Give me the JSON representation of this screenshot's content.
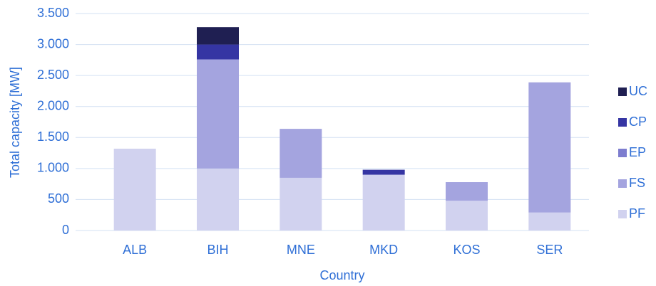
{
  "chart_data": {
    "type": "stacked_bar",
    "y_label": "Total capacity [MW]",
    "x_label": "Country",
    "categories": [
      "ALB",
      "BIH",
      "MNE",
      "MKD",
      "KOS",
      "SER"
    ],
    "series": [
      {
        "name": "PF",
        "color": "#d1d2ef",
        "values": [
          1320,
          1000,
          850,
          900,
          480,
          290
        ]
      },
      {
        "name": "FS",
        "color": "#a4a4df",
        "values": [
          0,
          1760,
          790,
          0,
          300,
          2100
        ]
      },
      {
        "name": "EP",
        "color": "#7d7dcf",
        "values": [
          0,
          0,
          0,
          0,
          0,
          0
        ]
      },
      {
        "name": "CP",
        "color": "#3535a3",
        "values": [
          0,
          240,
          0,
          80,
          0,
          0
        ]
      },
      {
        "name": "UC",
        "color": "#1f1f52",
        "values": [
          0,
          280,
          0,
          0,
          0,
          0
        ]
      }
    ],
    "ylim": [
      0,
      3500
    ],
    "yticks": [
      0,
      500,
      {
        "value": 1000,
        "label": "1.000"
      },
      {
        "value": 1500,
        "label": "1.500"
      },
      {
        "value": 2000,
        "label": "2.000"
      },
      {
        "value": 2500,
        "label": "2.500"
      },
      {
        "value": 3000,
        "label": "3.000"
      },
      {
        "value": 3500,
        "label": "3.500"
      }
    ],
    "grid": true,
    "legend": "right"
  }
}
